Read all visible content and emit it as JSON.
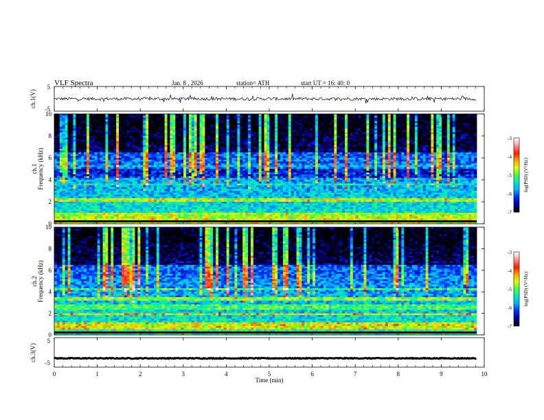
{
  "header": {
    "title": "VLF  Spectra",
    "date": "Jan. 8  , 2026",
    "station": "station= ATH",
    "start_ut": "start  UT  =   16: 40: 0"
  },
  "colors": {
    "colormap": [
      "#000000",
      "#0000a0",
      "#0030ff",
      "#00b0ff",
      "#00e8c8",
      "#40ff40",
      "#e0ff00",
      "#ffa000",
      "#ff1a00",
      "#ff9090",
      "#ffffff"
    ]
  },
  "chart_data": [
    {
      "type": "line",
      "name": "ch1-waveform",
      "ylabel": "ch.1(V)",
      "ylim": [
        -5,
        5
      ],
      "yticks": [
        "5",
        "-5"
      ],
      "xlim": [
        0,
        10
      ],
      "x_range_data": [
        0,
        9.82
      ],
      "baseline": 0,
      "noise_amplitude": 0.6
    },
    {
      "type": "heatmap",
      "name": "ch1-spectrogram",
      "ylabel": "ch.1\nFrequency  (kHz)",
      "ylabel_lines": [
        "ch.1",
        "Frequency  (kHz)"
      ],
      "ylim": [
        0,
        10
      ],
      "yticks": [
        "0",
        "2",
        "4",
        "6",
        "8",
        "10"
      ],
      "xlim": [
        0,
        10
      ],
      "x_range_data": [
        0,
        9.82
      ],
      "colorbar": {
        "label": "log(PSD) (V²/Hz)",
        "range": [
          -7,
          -3
        ],
        "ticks": [
          "-3",
          "-4",
          "-5",
          "-6",
          "-7"
        ]
      }
    },
    {
      "type": "heatmap",
      "name": "ch2-spectrogram",
      "ylabel": "ch.2\nFrequency  (kHz)",
      "ylabel_lines": [
        "ch.2",
        "Frequency  (kHz)"
      ],
      "ylim": [
        0,
        10
      ],
      "yticks": [
        "0",
        "2",
        "4",
        "6",
        "8",
        "10"
      ],
      "xlim": [
        0,
        10
      ],
      "x_range_data": [
        0,
        9.82
      ],
      "colorbar": {
        "label": "log(PSD) (V²/Hz)",
        "range": [
          -7,
          -3
        ],
        "ticks": [
          "-3",
          "-4",
          "-5",
          "-6",
          "-7"
        ]
      }
    },
    {
      "type": "line",
      "name": "ch3-waveform",
      "ylabel": "ch.3(V)",
      "ylim": [
        -5,
        5
      ],
      "yticks": [
        "5",
        "-5"
      ],
      "xlim": [
        0,
        10
      ],
      "x_range_data": [
        0,
        9.82
      ],
      "baseline": -2,
      "noise_amplitude": 0.15
    }
  ],
  "x_axis": {
    "label": "Time  (min)",
    "ticks": [
      "0",
      "1",
      "2",
      "3",
      "4",
      "5",
      "6",
      "7",
      "8",
      "9",
      "10"
    ]
  }
}
